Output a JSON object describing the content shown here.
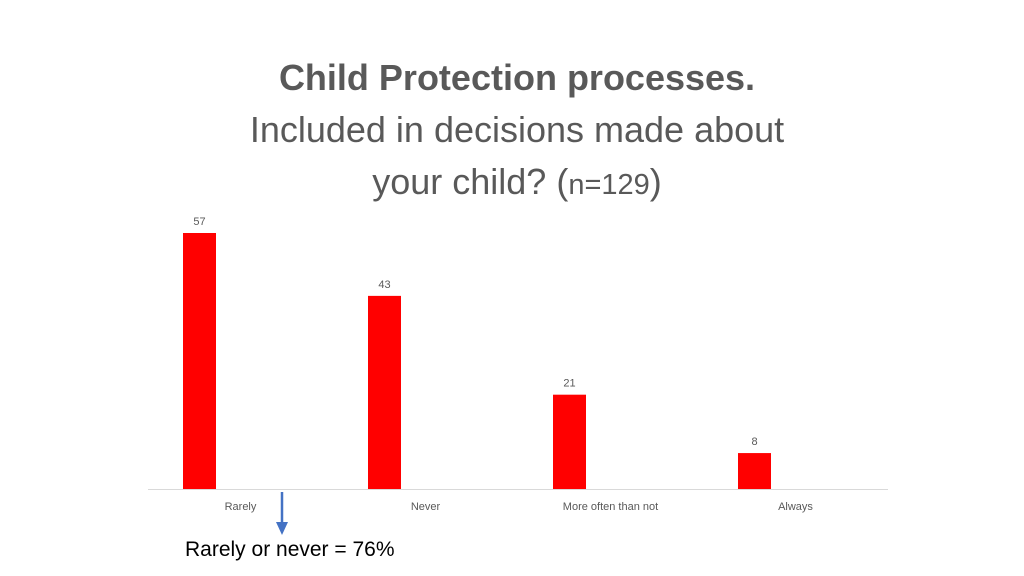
{
  "title": {
    "line1": "Child Protection processes.",
    "line2": "Included in decisions made about",
    "line3_prefix": "your child? (",
    "line3_n": "n=129",
    "line3_suffix": ")"
  },
  "annotation": {
    "text": "Rarely or never = 76%",
    "arrow_icon": "down-arrow-icon",
    "arrow_color": "#4472C4"
  },
  "chart_data": {
    "type": "bar",
    "title": "Child Protection processes. Included in decisions made about your child? (n=129)",
    "categories": [
      "Rarely",
      "Never",
      "More often than not",
      "Always"
    ],
    "values": [
      57,
      43,
      21,
      8
    ],
    "data_labels": [
      "57",
      "43",
      "21",
      "8"
    ],
    "ylim": [
      0,
      57
    ],
    "bar_color": "#FF0000",
    "axis_color": "#D9D9D9",
    "label_color": "#595959",
    "grid": false,
    "legend": "none"
  }
}
